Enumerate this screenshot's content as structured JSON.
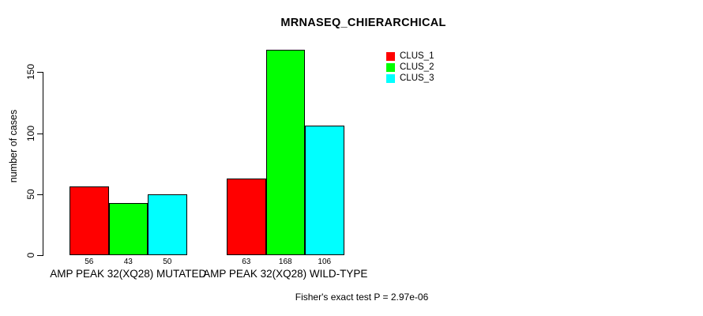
{
  "title": "MRNASEQ_CHIERARCHICAL",
  "ylabel": "number of cases",
  "footnote": "Fisher's exact test P = 2.97e-06",
  "legend": [
    {
      "label": "CLUS_1",
      "color": "#ff0000"
    },
    {
      "label": "CLUS_2",
      "color": "#00ff00"
    },
    {
      "label": "CLUS_3",
      "color": "#00ffff"
    }
  ],
  "chart_data": {
    "type": "bar",
    "title": "MRNASEQ_CHIERARCHICAL",
    "xlabel": "",
    "ylabel": "number of cases",
    "categories": [
      "AMP PEAK 32(XQ28) MUTATED",
      "AMP PEAK 32(XQ28) WILD-TYPE"
    ],
    "series": [
      {
        "name": "CLUS_1",
        "color": "#ff0000",
        "values": [
          56,
          63
        ]
      },
      {
        "name": "CLUS_2",
        "color": "#00ff00",
        "values": [
          43,
          168
        ]
      },
      {
        "name": "CLUS_3",
        "color": "#00ffff",
        "values": [
          50,
          106
        ]
      }
    ],
    "bar_value_labels": [
      [
        "56",
        "43",
        "50"
      ],
      [
        "63",
        "168",
        "106"
      ]
    ],
    "yticks": [
      0,
      50,
      100,
      150
    ],
    "ylim": [
      0,
      168
    ],
    "grid": false,
    "legend_position": "top-right",
    "legend_entries": [
      "CLUS_1",
      "CLUS_2",
      "CLUS_3"
    ],
    "annotation": "Fisher's exact test P = 2.97e-06"
  }
}
